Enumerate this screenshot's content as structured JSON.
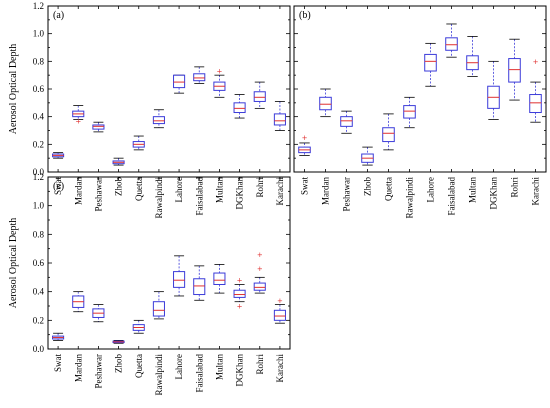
{
  "colors": {
    "box": "#3b3bd9",
    "median": "#e03030",
    "outlier": "#e03030",
    "whisker": "#3b3bd9",
    "frame": "#000000"
  },
  "chart_data": [
    {
      "panel": "(a)",
      "type": "boxplot",
      "ylabel": "Aerosol Optical Depth",
      "ylim": [
        0,
        1.2
      ],
      "yticks": [
        "0.0",
        "0.2",
        "0.4",
        "0.6",
        "0.8",
        "1.0",
        "1.2"
      ],
      "categories": [
        "Swat",
        "Mardan",
        "Peshawar",
        "Zhob",
        "Quetta",
        "Rawalpindi",
        "Lahore",
        "Faisalabad",
        "Multan",
        "DGKhan",
        "Rohri",
        "Karachi"
      ],
      "boxes": [
        {
          "min": 0.1,
          "q1": 0.11,
          "median": 0.12,
          "q3": 0.13,
          "max": 0.14,
          "outliers": []
        },
        {
          "min": 0.38,
          "q1": 0.4,
          "median": 0.42,
          "q3": 0.44,
          "max": 0.48,
          "outliers": [
            0.37
          ]
        },
        {
          "min": 0.29,
          "q1": 0.31,
          "median": 0.33,
          "q3": 0.34,
          "max": 0.36,
          "outliers": []
        },
        {
          "min": 0.05,
          "q1": 0.06,
          "median": 0.07,
          "q3": 0.08,
          "max": 0.1,
          "outliers": []
        },
        {
          "min": 0.16,
          "q1": 0.18,
          "median": 0.2,
          "q3": 0.22,
          "max": 0.26,
          "outliers": []
        },
        {
          "min": 0.32,
          "q1": 0.35,
          "median": 0.37,
          "q3": 0.4,
          "max": 0.45,
          "outliers": []
        },
        {
          "min": 0.57,
          "q1": 0.61,
          "median": 0.65,
          "q3": 0.7,
          "max": 0.7,
          "outliers": []
        },
        {
          "min": 0.64,
          "q1": 0.66,
          "median": 0.68,
          "q3": 0.71,
          "max": 0.76,
          "outliers": []
        },
        {
          "min": 0.54,
          "q1": 0.59,
          "median": 0.62,
          "q3": 0.65,
          "max": 0.7,
          "outliers": [
            0.73
          ]
        },
        {
          "min": 0.39,
          "q1": 0.43,
          "median": 0.46,
          "q3": 0.5,
          "max": 0.56,
          "outliers": []
        },
        {
          "min": 0.46,
          "q1": 0.51,
          "median": 0.54,
          "q3": 0.58,
          "max": 0.65,
          "outliers": []
        },
        {
          "min": 0.3,
          "q1": 0.34,
          "median": 0.37,
          "q3": 0.42,
          "max": 0.51,
          "outliers": []
        }
      ]
    },
    {
      "panel": "(b)",
      "type": "boxplot",
      "ylabel": "",
      "ylim": [
        0,
        1.2
      ],
      "yticks": [],
      "categories": [
        "Swat",
        "Mardan",
        "Peshawar",
        "Zhob",
        "Quetta",
        "Rawalpindi",
        "Lahore",
        "Faisalabad",
        "Multan",
        "DGKhan",
        "Rohri",
        "Karachi"
      ],
      "boxes": [
        {
          "min": 0.12,
          "q1": 0.14,
          "median": 0.16,
          "q3": 0.18,
          "max": 0.21,
          "outliers": [
            0.25
          ]
        },
        {
          "min": 0.4,
          "q1": 0.45,
          "median": 0.49,
          "q3": 0.54,
          "max": 0.6,
          "outliers": []
        },
        {
          "min": 0.28,
          "q1": 0.33,
          "median": 0.37,
          "q3": 0.4,
          "max": 0.44,
          "outliers": []
        },
        {
          "min": 0.05,
          "q1": 0.07,
          "median": 0.1,
          "q3": 0.13,
          "max": 0.18,
          "outliers": []
        },
        {
          "min": 0.16,
          "q1": 0.22,
          "median": 0.28,
          "q3": 0.32,
          "max": 0.42,
          "outliers": []
        },
        {
          "min": 0.32,
          "q1": 0.39,
          "median": 0.44,
          "q3": 0.48,
          "max": 0.54,
          "outliers": []
        },
        {
          "min": 0.62,
          "q1": 0.73,
          "median": 0.8,
          "q3": 0.85,
          "max": 0.93,
          "outliers": []
        },
        {
          "min": 0.83,
          "q1": 0.88,
          "median": 0.92,
          "q3": 0.97,
          "max": 1.07,
          "outliers": []
        },
        {
          "min": 0.69,
          "q1": 0.74,
          "median": 0.79,
          "q3": 0.84,
          "max": 0.98,
          "outliers": []
        },
        {
          "min": 0.38,
          "q1": 0.46,
          "median": 0.54,
          "q3": 0.62,
          "max": 0.8,
          "outliers": []
        },
        {
          "min": 0.52,
          "q1": 0.65,
          "median": 0.74,
          "q3": 0.82,
          "max": 0.96,
          "outliers": []
        },
        {
          "min": 0.36,
          "q1": 0.43,
          "median": 0.5,
          "q3": 0.56,
          "max": 0.65,
          "outliers": [
            0.8
          ]
        }
      ]
    },
    {
      "panel": "(c)",
      "type": "boxplot",
      "ylabel": "Aerosol Optical Depth",
      "ylim": [
        0,
        1.2
      ],
      "yticks": [
        "0.0",
        "0.2",
        "0.4",
        "0.6",
        "0.8",
        "1.0",
        "1.2"
      ],
      "categories": [
        "Swat",
        "Mardan",
        "Peshawar",
        "Zhob",
        "Quetta",
        "Rawalpindi",
        "Lahore",
        "Faisalabad",
        "Multan",
        "DGKhan",
        "Rohri",
        "Karachi"
      ],
      "boxes": [
        {
          "min": 0.06,
          "q1": 0.07,
          "median": 0.08,
          "q3": 0.09,
          "max": 0.11,
          "outliers": []
        },
        {
          "min": 0.26,
          "q1": 0.29,
          "median": 0.33,
          "q3": 0.37,
          "max": 0.4,
          "outliers": []
        },
        {
          "min": 0.19,
          "q1": 0.22,
          "median": 0.25,
          "q3": 0.28,
          "max": 0.31,
          "outliers": []
        },
        {
          "min": 0.04,
          "q1": 0.045,
          "median": 0.05,
          "q3": 0.055,
          "max": 0.06,
          "outliers": []
        },
        {
          "min": 0.11,
          "q1": 0.13,
          "median": 0.15,
          "q3": 0.17,
          "max": 0.2,
          "outliers": []
        },
        {
          "min": 0.21,
          "q1": 0.23,
          "median": 0.27,
          "q3": 0.33,
          "max": 0.4,
          "outliers": []
        },
        {
          "min": 0.37,
          "q1": 0.43,
          "median": 0.48,
          "q3": 0.54,
          "max": 0.65,
          "outliers": []
        },
        {
          "min": 0.34,
          "q1": 0.38,
          "median": 0.44,
          "q3": 0.49,
          "max": 0.58,
          "outliers": []
        },
        {
          "min": 0.39,
          "q1": 0.45,
          "median": 0.48,
          "q3": 0.53,
          "max": 0.59,
          "outliers": []
        },
        {
          "min": 0.33,
          "q1": 0.36,
          "median": 0.38,
          "q3": 0.41,
          "max": 0.45,
          "outliers": [
            0.3,
            0.48
          ]
        },
        {
          "min": 0.39,
          "q1": 0.41,
          "median": 0.43,
          "q3": 0.46,
          "max": 0.5,
          "outliers": [
            0.56,
            0.66
          ]
        },
        {
          "min": 0.18,
          "q1": 0.2,
          "median": 0.23,
          "q3": 0.27,
          "max": 0.31,
          "outliers": [
            0.34
          ]
        }
      ]
    }
  ]
}
